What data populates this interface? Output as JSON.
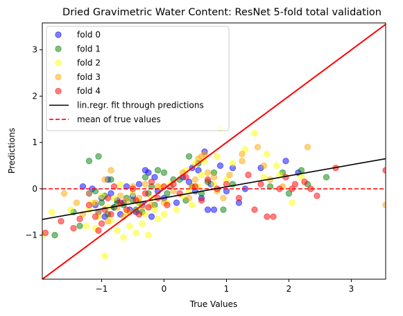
{
  "chart_data": {
    "type": "scatter",
    "title": "Dried Gravimetric Water Content: ResNet 5-fold total validation",
    "xlabel": "True Values",
    "ylabel": "Predictions",
    "xlim": [
      -1.95,
      3.55
    ],
    "ylim": [
      -1.95,
      3.58
    ],
    "xticks": [
      -1,
      0,
      1,
      2,
      3
    ],
    "yticks": [
      -1,
      0,
      1,
      2,
      3
    ],
    "xtick_labels": [
      "−1",
      "0",
      "1",
      "2",
      "3"
    ],
    "ytick_labels": [
      "−1",
      "0",
      "1",
      "2",
      "3"
    ],
    "grid": false,
    "legend_position": "top-left",
    "series": [
      {
        "name": "fold 0",
        "color": "#0000ff",
        "points": [
          [
            -1.3,
            0.05
          ],
          [
            -1.2,
            -0.1
          ],
          [
            -1.15,
            0.0
          ],
          [
            -1.1,
            -0.35
          ],
          [
            -1.05,
            -0.5
          ],
          [
            -1.0,
            -0.2
          ],
          [
            -0.95,
            -0.6
          ],
          [
            -0.9,
            0.2
          ],
          [
            -0.85,
            -0.1
          ],
          [
            -0.8,
            -0.4
          ],
          [
            -0.75,
            -0.25
          ],
          [
            -0.7,
            -0.55
          ],
          [
            -0.65,
            -0.3
          ],
          [
            -0.6,
            0.05
          ],
          [
            -0.55,
            -0.45
          ],
          [
            -0.5,
            -0.15
          ],
          [
            -0.45,
            -0.5
          ],
          [
            -0.4,
            0.1
          ],
          [
            -0.35,
            -0.35
          ],
          [
            -0.3,
            0.4
          ],
          [
            -0.25,
            0.35
          ],
          [
            -0.2,
            -0.6
          ],
          [
            -0.15,
            0.25
          ],
          [
            -0.1,
            -0.05
          ],
          [
            0.0,
            -0.2
          ],
          [
            0.1,
            0.05
          ],
          [
            0.2,
            -0.3
          ],
          [
            0.3,
            0.25
          ],
          [
            0.4,
            0.15
          ],
          [
            0.45,
            0.45
          ],
          [
            0.5,
            -0.05
          ],
          [
            0.55,
            0.4
          ],
          [
            0.6,
            -0.2
          ],
          [
            0.65,
            0.8
          ],
          [
            0.7,
            -0.45
          ],
          [
            0.75,
            0.1
          ],
          [
            0.8,
            -0.45
          ],
          [
            0.9,
            0.5
          ],
          [
            1.0,
            -0.05
          ],
          [
            1.1,
            0.45
          ],
          [
            1.3,
            0.0
          ],
          [
            1.55,
            0.45
          ],
          [
            1.95,
            0.6
          ],
          [
            2.15,
            0.35
          ],
          [
            1.2,
            -0.3
          ]
        ]
      },
      {
        "name": "fold 1",
        "color": "#008000",
        "points": [
          [
            -1.75,
            -1.0
          ],
          [
            -1.45,
            -0.5
          ],
          [
            -1.35,
            -0.8
          ],
          [
            -1.2,
            0.6
          ],
          [
            -1.1,
            -0.05
          ],
          [
            -1.05,
            0.7
          ],
          [
            -1.0,
            -0.3
          ],
          [
            -0.95,
            -0.15
          ],
          [
            -0.9,
            -0.55
          ],
          [
            -0.85,
            0.2
          ],
          [
            -0.8,
            -0.4
          ],
          [
            -0.75,
            -0.3
          ],
          [
            -0.65,
            -0.35
          ],
          [
            -0.6,
            -0.2
          ],
          [
            -0.5,
            -0.25
          ],
          [
            -0.45,
            -0.45
          ],
          [
            -0.4,
            -0.3
          ],
          [
            -0.35,
            -0.5
          ],
          [
            -0.3,
            0.25
          ],
          [
            -0.25,
            -0.1
          ],
          [
            -0.2,
            0.05
          ],
          [
            -0.15,
            -0.35
          ],
          [
            -0.1,
            0.4
          ],
          [
            0.0,
            0.35
          ],
          [
            0.05,
            -0.1
          ],
          [
            0.15,
            0.2
          ],
          [
            0.25,
            0.2
          ],
          [
            0.35,
            -0.25
          ],
          [
            0.4,
            0.7
          ],
          [
            0.45,
            0.05
          ],
          [
            0.55,
            0.55
          ],
          [
            0.6,
            -0.1
          ],
          [
            0.7,
            0.15
          ],
          [
            0.8,
            0.35
          ],
          [
            0.95,
            -0.45
          ],
          [
            1.1,
            0.1
          ],
          [
            1.7,
            0.05
          ],
          [
            1.9,
            0.35
          ],
          [
            2.0,
            -0.1
          ],
          [
            2.2,
            0.4
          ],
          [
            2.6,
            0.25
          ],
          [
            2.3,
            0.1
          ]
        ]
      },
      {
        "name": "fold 2",
        "color": "#ffff00",
        "points": [
          [
            -1.95,
            -1.0
          ],
          [
            -1.8,
            -0.5
          ],
          [
            -1.5,
            -0.45
          ],
          [
            -1.25,
            -0.8
          ],
          [
            -1.2,
            -0.45
          ],
          [
            -1.15,
            -0.3
          ],
          [
            -1.1,
            -0.85
          ],
          [
            -1.05,
            -0.6
          ],
          [
            -1.0,
            -0.15
          ],
          [
            -0.95,
            -1.45
          ],
          [
            -0.9,
            -0.4
          ],
          [
            -0.85,
            -0.7
          ],
          [
            -0.8,
            -0.2
          ],
          [
            -0.75,
            -0.9
          ],
          [
            -0.7,
            0.1
          ],
          [
            -0.65,
            -1.05
          ],
          [
            -0.6,
            -0.5
          ],
          [
            -0.55,
            -0.8
          ],
          [
            -0.5,
            -0.1
          ],
          [
            -0.45,
            -0.95
          ],
          [
            -0.4,
            -0.3
          ],
          [
            -0.35,
            -0.75
          ],
          [
            -0.3,
            -0.55
          ],
          [
            -0.25,
            -1.0
          ],
          [
            -0.2,
            -0.2
          ],
          [
            -0.15,
            -0.45
          ],
          [
            -0.1,
            -0.65
          ],
          [
            -0.05,
            0.05
          ],
          [
            0.0,
            -0.55
          ],
          [
            0.05,
            -0.3
          ],
          [
            0.1,
            0.1
          ],
          [
            0.2,
            -0.45
          ],
          [
            0.3,
            -0.15
          ],
          [
            0.35,
            0.4
          ],
          [
            0.45,
            -0.35
          ],
          [
            0.5,
            0.55
          ],
          [
            0.55,
            0.05
          ],
          [
            0.6,
            0.3
          ],
          [
            0.65,
            0.6
          ],
          [
            0.8,
            0.1
          ],
          [
            0.85,
            0.7
          ],
          [
            0.9,
            1.3
          ],
          [
            1.0,
            0.2
          ],
          [
            1.1,
            0.55
          ],
          [
            1.3,
            0.85
          ],
          [
            1.45,
            1.2
          ],
          [
            1.6,
            0.25
          ],
          [
            1.85,
            0.3
          ],
          [
            2.05,
            -0.3
          ],
          [
            2.2,
            0.25
          ],
          [
            1.8,
            0.5
          ],
          [
            1.65,
            0.75
          ],
          [
            0.4,
            -0.05
          ]
        ]
      },
      {
        "name": "fold 3",
        "color": "#ffa500",
        "points": [
          [
            -1.6,
            -0.1
          ],
          [
            -1.4,
            -0.3
          ],
          [
            -1.3,
            -0.55
          ],
          [
            -1.2,
            -0.1
          ],
          [
            -1.1,
            -0.3
          ],
          [
            -1.05,
            -0.5
          ],
          [
            -0.95,
            0.2
          ],
          [
            -0.9,
            -0.7
          ],
          [
            -0.85,
            0.4
          ],
          [
            -0.75,
            -0.4
          ],
          [
            -0.7,
            -0.15
          ],
          [
            -0.65,
            -0.6
          ],
          [
            -0.6,
            -0.25
          ],
          [
            -0.55,
            -0.5
          ],
          [
            -0.5,
            0.05
          ],
          [
            -0.4,
            -0.2
          ],
          [
            -0.35,
            -0.4
          ],
          [
            -0.3,
            0.1
          ],
          [
            -0.2,
            -0.35
          ],
          [
            -0.1,
            0.05
          ],
          [
            0.0,
            -0.3
          ],
          [
            0.15,
            -0.05
          ],
          [
            0.3,
            0.35
          ],
          [
            0.4,
            -0.2
          ],
          [
            0.45,
            0.05
          ],
          [
            0.5,
            0.2
          ],
          [
            0.55,
            0.65
          ],
          [
            0.6,
            0.7
          ],
          [
            0.65,
            0.75
          ],
          [
            0.7,
            0.35
          ],
          [
            0.8,
            0.25
          ],
          [
            0.85,
            -0.05
          ],
          [
            0.95,
            -0.2
          ],
          [
            1.05,
            0.3
          ],
          [
            1.25,
            0.6
          ],
          [
            1.25,
            0.75
          ],
          [
            1.5,
            0.9
          ],
          [
            1.7,
            0.2
          ],
          [
            1.9,
            0.05
          ],
          [
            2.3,
            0.9
          ],
          [
            3.55,
            -0.35
          ],
          [
            1.6,
            0.5
          ]
        ]
      },
      {
        "name": "fold 4",
        "color": "#ff0000",
        "points": [
          [
            -1.9,
            -0.95
          ],
          [
            -1.65,
            -0.7
          ],
          [
            -1.45,
            -0.85
          ],
          [
            -1.35,
            -0.65
          ],
          [
            -1.2,
            -0.35
          ],
          [
            -1.1,
            -0.6
          ],
          [
            -1.05,
            -0.9
          ],
          [
            -1.0,
            -0.75
          ],
          [
            -0.95,
            -0.45
          ],
          [
            -0.9,
            -0.2
          ],
          [
            -0.85,
            -0.55
          ],
          [
            -0.8,
            0.05
          ],
          [
            -0.7,
            -0.3
          ],
          [
            -0.6,
            -0.45
          ],
          [
            -0.5,
            0.0
          ],
          [
            -0.45,
            -0.25
          ],
          [
            -0.4,
            -0.55
          ],
          [
            -0.3,
            -0.1
          ],
          [
            -0.25,
            -0.4
          ],
          [
            -0.2,
            0.15
          ],
          [
            -0.1,
            -0.2
          ],
          [
            0.0,
            0.05
          ],
          [
            0.05,
            -0.35
          ],
          [
            0.15,
            0.1
          ],
          [
            0.25,
            -0.1
          ],
          [
            0.35,
            0.25
          ],
          [
            0.5,
            0.05
          ],
          [
            0.6,
            -0.25
          ],
          [
            0.7,
            0.2
          ],
          [
            0.85,
            0.0
          ],
          [
            1.0,
            0.1
          ],
          [
            1.2,
            -0.2
          ],
          [
            1.35,
            0.3
          ],
          [
            1.45,
            -0.45
          ],
          [
            1.55,
            0.1
          ],
          [
            1.65,
            -0.6
          ],
          [
            1.75,
            -0.6
          ],
          [
            1.85,
            0.0
          ],
          [
            1.95,
            0.25
          ],
          [
            2.05,
            0.0
          ],
          [
            2.1,
            0.1
          ],
          [
            2.25,
            0.15
          ],
          [
            2.35,
            0.0
          ],
          [
            2.45,
            -0.15
          ],
          [
            2.75,
            0.45
          ],
          [
            3.55,
            0.4
          ]
        ]
      }
    ],
    "lines": [
      {
        "name": "lin.regr. fit through predictions",
        "color": "#000000",
        "style": "solid",
        "x": [
          -1.95,
          3.55
        ],
        "y": [
          -0.66,
          0.65
        ]
      },
      {
        "name": "mean of true values",
        "color": "#ff0000",
        "style": "dashed",
        "x": [
          -1.95,
          3.55
        ],
        "y": [
          0.0,
          0.0
        ]
      },
      {
        "name": "",
        "color": "#ff0000",
        "style": "solid",
        "x": [
          -1.95,
          3.55
        ],
        "y": [
          -1.95,
          3.55
        ]
      }
    ]
  }
}
